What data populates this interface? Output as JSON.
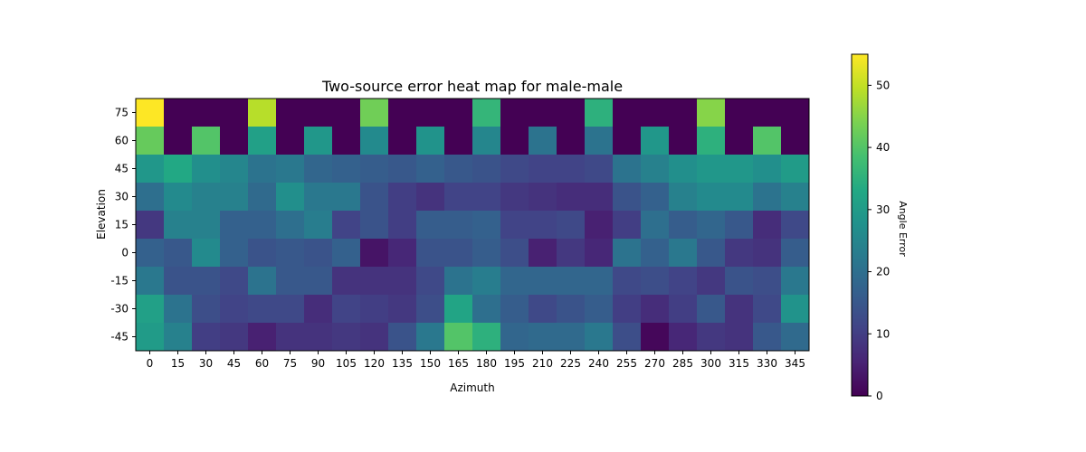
{
  "chart_data": {
    "type": "heatmap",
    "title": "Two-source error heat map for male-male",
    "xlabel": "Azimuth",
    "ylabel": "Elevation",
    "x": [
      "0",
      "15",
      "30",
      "45",
      "60",
      "75",
      "90",
      "105",
      "120",
      "135",
      "150",
      "165",
      "180",
      "195",
      "210",
      "225",
      "240",
      "255",
      "270",
      "285",
      "300",
      "315",
      "330",
      "345"
    ],
    "y": [
      "75",
      "60",
      "45",
      "30",
      "15",
      "0",
      "-15",
      "-30",
      "-45"
    ],
    "values": [
      [
        55,
        0,
        0,
        0,
        49,
        0,
        0,
        0,
        43,
        0,
        0,
        0,
        36,
        0,
        0,
        0,
        35,
        0,
        0,
        0,
        45,
        0,
        0,
        0
      ],
      [
        42,
        0,
        40,
        0,
        31,
        0,
        29,
        0,
        26,
        0,
        28,
        0,
        25,
        0,
        21,
        0,
        21,
        0,
        29,
        0,
        35,
        0,
        40,
        0
      ],
      [
        29,
        33,
        27,
        25,
        21,
        22,
        18,
        17,
        16,
        15,
        17,
        15,
        14,
        12,
        11,
        11,
        12,
        21,
        24,
        27,
        29,
        29,
        27,
        30
      ],
      [
        20,
        26,
        24,
        24,
        19,
        27,
        22,
        22,
        14,
        10,
        8,
        11,
        11,
        9,
        8,
        7,
        7,
        14,
        17,
        24,
        26,
        26,
        21,
        24
      ],
      [
        9,
        24,
        24,
        17,
        17,
        20,
        23,
        11,
        14,
        10,
        16,
        16,
        17,
        11,
        11,
        12,
        5,
        10,
        20,
        16,
        18,
        15,
        7,
        12
      ],
      [
        17,
        15,
        26,
        17,
        14,
        15,
        14,
        17,
        3,
        6,
        14,
        14,
        16,
        13,
        5,
        9,
        6,
        21,
        17,
        22,
        15,
        9,
        8,
        16
      ],
      [
        22,
        14,
        14,
        12,
        21,
        15,
        15,
        8,
        8,
        8,
        12,
        21,
        23,
        18,
        18,
        18,
        18,
        12,
        13,
        11,
        9,
        14,
        13,
        22
      ],
      [
        31,
        21,
        13,
        11,
        12,
        12,
        7,
        11,
        10,
        9,
        13,
        32,
        20,
        16,
        12,
        14,
        16,
        10,
        7,
        10,
        15,
        8,
        12,
        28
      ],
      [
        30,
        24,
        10,
        9,
        5,
        8,
        8,
        9,
        8,
        14,
        22,
        40,
        35,
        18,
        19,
        19,
        22,
        13,
        1,
        6,
        9,
        8,
        15,
        19
      ]
    ],
    "vmin": 0,
    "vmax": 55,
    "colormap": "viridis",
    "colorbar": {
      "label": "Angle Error",
      "ticks": [
        "0",
        "10",
        "20",
        "30",
        "40",
        "50"
      ],
      "tick_values": [
        0,
        10,
        20,
        30,
        40,
        50
      ]
    }
  }
}
